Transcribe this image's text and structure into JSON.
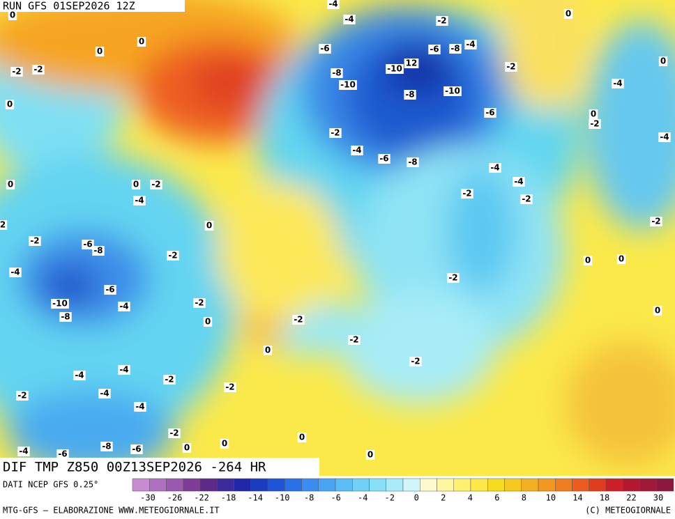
{
  "header": {
    "run": "RUN GFS 01SEP2026 12Z"
  },
  "map_title": "DIF TMP Z850 00Z13SEP2026 -264 HR",
  "map_labels": [
    "0",
    "0",
    "0",
    "-2",
    "-2",
    "0",
    "0",
    "0",
    "-2",
    "-4",
    "2",
    "0",
    "-2",
    "-6",
    "-8",
    "-2",
    "-4",
    "-6",
    "-4",
    "-10",
    "-8",
    "-2",
    "0",
    "-2",
    "-2",
    "0",
    "-2",
    "-4",
    "-4",
    "-2",
    "-2",
    "-4",
    "-2",
    "-4",
    "-2",
    "0",
    "0",
    "0",
    "-8",
    "-6",
    "-4",
    "-6",
    "0",
    "-4",
    "-2",
    "0",
    "-6",
    "-6",
    "-8",
    "-4",
    "-8",
    "-10",
    "12",
    "-10",
    "-8",
    "-10",
    "-2",
    "-4",
    "0",
    "-6",
    "0",
    "-2",
    "-4",
    "-2",
    "-4",
    "-6",
    "-8",
    "-4",
    "-4",
    "-2",
    "-2",
    "-2",
    "0",
    "0",
    "-2",
    "0",
    "-4"
  ],
  "legend": {
    "source": "DATI NCEP GFS 0.25°",
    "colors": [
      "#c88ad0",
      "#b070c0",
      "#9a58b0",
      "#7e3c98",
      "#5e2a8a",
      "#3a2a9a",
      "#1e28a8",
      "#1a3cc0",
      "#1e55d8",
      "#2a70e8",
      "#3a8cf0",
      "#4aa4f4",
      "#5cbcf6",
      "#70d0f8",
      "#88e0f8",
      "#a8ecfa",
      "#d0f8fc",
      "#fffbd0",
      "#fff6a0",
      "#fff070",
      "#fde848",
      "#f8dc20",
      "#f6c820",
      "#f4b020",
      "#f29820",
      "#f07c20",
      "#ec5c20",
      "#e03c20",
      "#cc2028",
      "#b41830",
      "#a0183a",
      "#8c1840"
    ],
    "labels": [
      "-30",
      "-26",
      "-22",
      "-18",
      "-14",
      "-10",
      "-8",
      "-6",
      "-4",
      "-2",
      "0",
      "2",
      "4",
      "6",
      "8",
      "10",
      "14",
      "18",
      "22",
      "30"
    ]
  },
  "footer": {
    "left": "MTG-GFS — ELABORAZIONE WWW.METEOGIORNALE.IT",
    "right": "(C) METEOGIORNALE"
  }
}
